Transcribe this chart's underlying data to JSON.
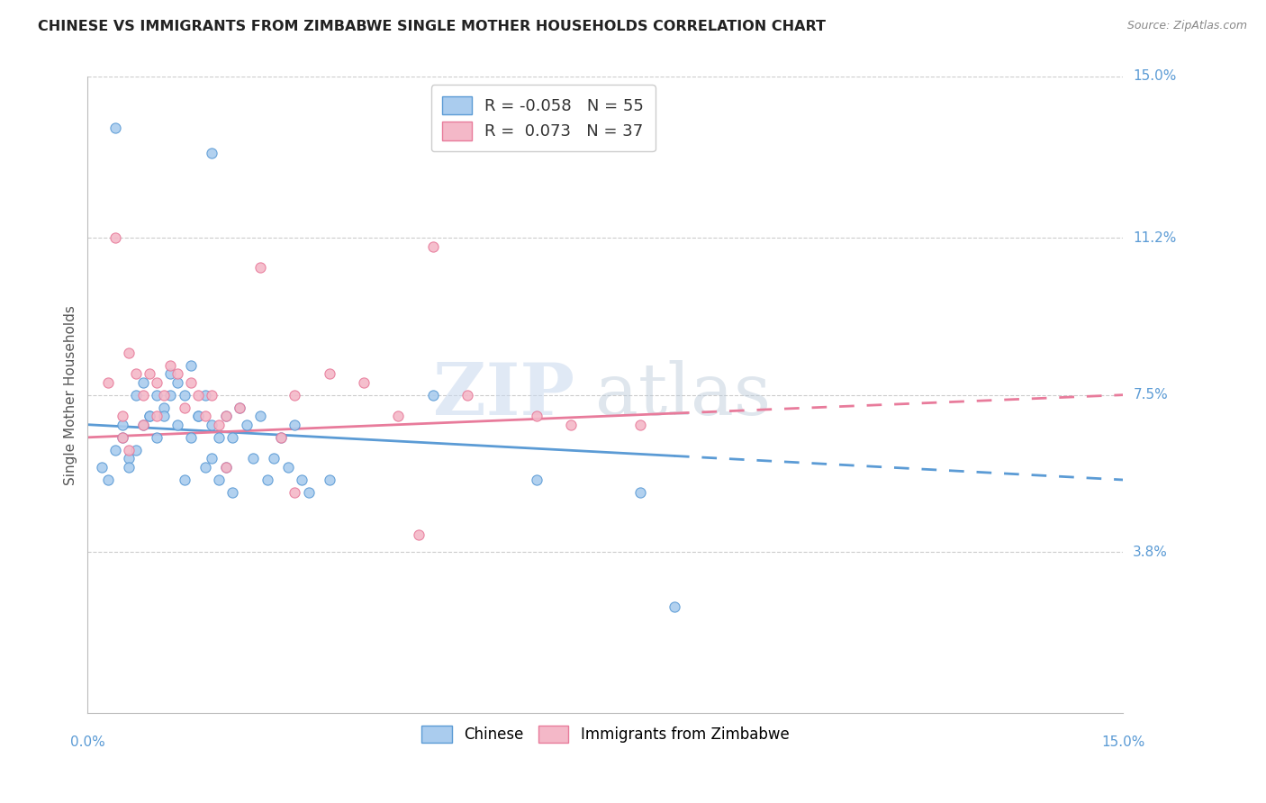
{
  "title": "CHINESE VS IMMIGRANTS FROM ZIMBABWE SINGLE MOTHER HOUSEHOLDS CORRELATION CHART",
  "source": "Source: ZipAtlas.com",
  "ylabel": "Single Mother Households",
  "xlim": [
    0,
    15
  ],
  "ylim": [
    0,
    15
  ],
  "ytick_vals": [
    3.8,
    7.5,
    11.2,
    15.0
  ],
  "ytick_labels": [
    "3.8%",
    "7.5%",
    "11.2%",
    "15.0%"
  ],
  "xtick_labels_show": [
    "0.0%",
    "15.0%"
  ],
  "legend_labels": [
    "Chinese",
    "Immigrants from Zimbabwe"
  ],
  "chinese_R": "-0.058",
  "chinese_N": "55",
  "zimbabwe_R": "0.073",
  "zimbabwe_N": "37",
  "chinese_color": "#aaccee",
  "zimbabwe_color": "#f4b8c8",
  "chinese_line_color": "#5b9bd5",
  "zimbabwe_line_color": "#e87b9b",
  "watermark_zip": "ZIP",
  "watermark_atlas": "atlas",
  "chinese_points_x": [
    0.2,
    0.4,
    1.8,
    0.3,
    0.4,
    0.5,
    0.6,
    0.7,
    0.8,
    0.9,
    1.0,
    1.1,
    1.2,
    1.3,
    1.4,
    1.5,
    1.6,
    1.7,
    1.8,
    1.9,
    2.0,
    2.1,
    2.2,
    2.3,
    2.4,
    2.5,
    2.6,
    2.7,
    2.8,
    2.9,
    3.0,
    3.1,
    3.2,
    0.5,
    0.6,
    0.7,
    0.8,
    0.9,
    1.0,
    1.1,
    1.2,
    1.3,
    1.4,
    1.5,
    1.6,
    1.7,
    1.8,
    1.9,
    2.0,
    2.1,
    3.5,
    5.0,
    6.5,
    8.0,
    8.5
  ],
  "chinese_points_y": [
    5.8,
    13.8,
    13.2,
    5.5,
    6.2,
    6.8,
    6.0,
    7.5,
    7.8,
    7.0,
    7.5,
    7.2,
    8.0,
    7.8,
    7.5,
    8.2,
    7.0,
    7.5,
    6.8,
    6.5,
    7.0,
    6.5,
    7.2,
    6.8,
    6.0,
    7.0,
    5.5,
    6.0,
    6.5,
    5.8,
    6.8,
    5.5,
    5.2,
    6.5,
    5.8,
    6.2,
    6.8,
    7.0,
    6.5,
    7.0,
    7.5,
    6.8,
    5.5,
    6.5,
    7.0,
    5.8,
    6.0,
    5.5,
    5.8,
    5.2,
    5.5,
    7.5,
    5.5,
    5.2,
    2.5
  ],
  "zimbabwe_points_x": [
    0.3,
    0.4,
    0.5,
    0.6,
    0.7,
    0.8,
    0.9,
    1.0,
    1.1,
    1.2,
    1.3,
    1.4,
    1.5,
    1.6,
    1.7,
    1.8,
    1.9,
    2.0,
    2.2,
    2.5,
    2.8,
    3.0,
    3.5,
    4.0,
    4.5,
    5.0,
    5.5,
    6.5,
    7.0,
    8.0,
    0.5,
    0.6,
    0.8,
    1.0,
    2.0,
    3.0,
    4.8
  ],
  "zimbabwe_points_y": [
    7.8,
    11.2,
    7.0,
    8.5,
    8.0,
    7.5,
    8.0,
    7.8,
    7.5,
    8.2,
    8.0,
    7.2,
    7.8,
    7.5,
    7.0,
    7.5,
    6.8,
    7.0,
    7.2,
    10.5,
    6.5,
    7.5,
    8.0,
    7.8,
    7.0,
    11.0,
    7.5,
    7.0,
    6.8,
    6.8,
    6.5,
    6.2,
    6.8,
    7.0,
    5.8,
    5.2,
    4.2
  ],
  "chinese_reg_x0": 0,
  "chinese_reg_y0": 6.8,
  "chinese_reg_x1": 15,
  "chinese_reg_y1": 5.5,
  "zimbabwe_reg_x0": 0,
  "zimbabwe_reg_y0": 6.5,
  "zimbabwe_reg_x1": 15,
  "zimbabwe_reg_y1": 7.5,
  "chinese_solid_end": 8.5,
  "zimbabwe_solid_end": 8.5
}
